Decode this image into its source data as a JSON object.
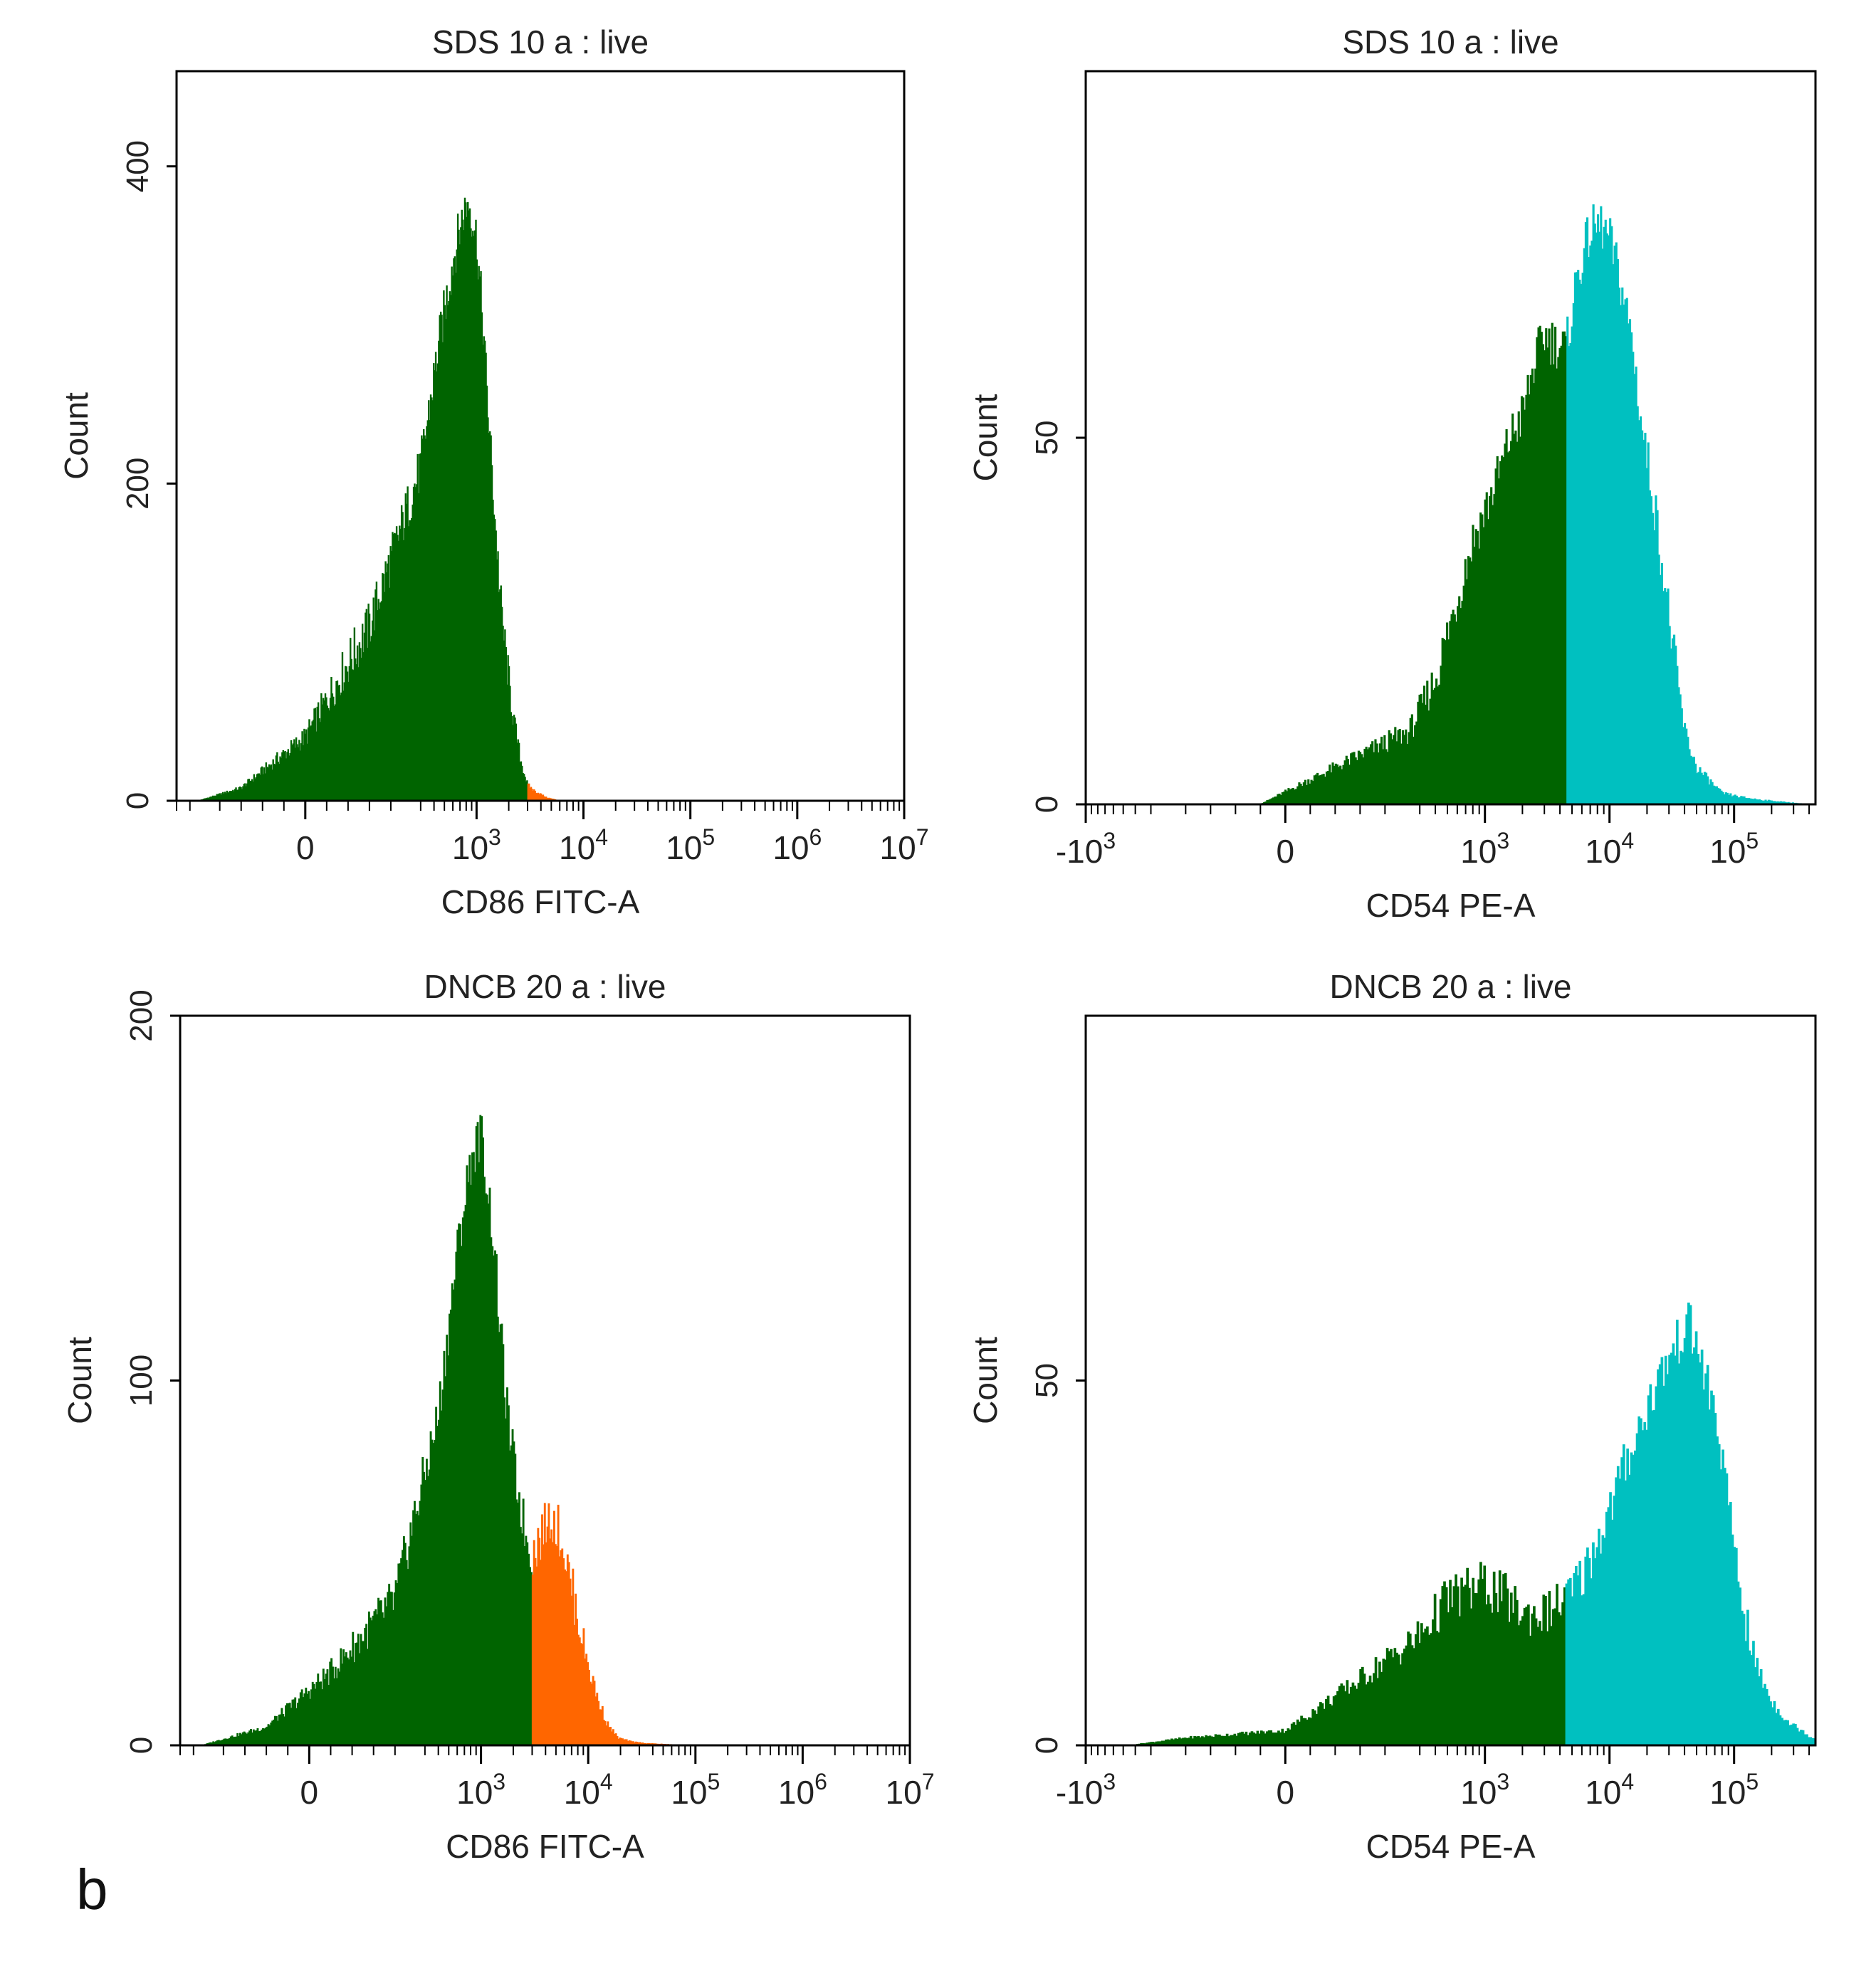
{
  "figure_label": "b",
  "colors": {
    "background": "#ffffff",
    "frame": "#000000",
    "negative": "#006400",
    "cd86_positive": "#ff6600",
    "cd54_positive": "#00c0c0"
  },
  "chart_data": [
    {
      "type": "histogram",
      "title": "SDS 10 a : live",
      "xlabel": "CD86 FITC-A",
      "ylabel": "Count",
      "x_scale": "biexponential",
      "xlim": [
        -400,
        10000000
      ],
      "x_ticks": [
        {
          "value": 0,
          "base": "0",
          "exp": ""
        },
        {
          "value": 1000,
          "base": "10",
          "exp": "3"
        },
        {
          "value": 10000,
          "base": "10",
          "exp": "4"
        },
        {
          "value": 100000,
          "base": "10",
          "exp": "5"
        },
        {
          "value": 1000000,
          "base": "10",
          "exp": "6"
        },
        {
          "value": 10000000,
          "base": "10",
          "exp": "7"
        }
      ],
      "ylim": [
        0,
        460
      ],
      "y_ticks": [
        0,
        200,
        400
      ],
      "gate": 3000,
      "series": [
        {
          "name": "negative",
          "points": [
            [
              -250,
              0
            ],
            [
              -150,
              8
            ],
            [
              0,
              40
            ],
            [
              150,
              110
            ],
            [
              300,
              210
            ],
            [
              450,
              290
            ],
            [
              600,
              340
            ],
            [
              750,
              370
            ],
            [
              850,
              378
            ],
            [
              1000,
              355
            ],
            [
              1150,
              300
            ],
            [
              1300,
              240
            ],
            [
              1500,
              175
            ],
            [
              1700,
              120
            ],
            [
              2000,
              75
            ],
            [
              2300,
              45
            ],
            [
              2600,
              25
            ],
            [
              3000,
              10
            ]
          ]
        },
        {
          "name": "positive",
          "points": [
            [
              3000,
              10
            ],
            [
              3500,
              6
            ],
            [
              4000,
              4
            ],
            [
              4500,
              2
            ],
            [
              5200,
              1
            ],
            [
              6000,
              0
            ]
          ]
        }
      ]
    },
    {
      "type": "histogram",
      "title": "SDS 10 a : live",
      "xlabel": "CD54 PE-A",
      "ylabel": "Count",
      "x_scale": "biexponential",
      "xlim": [
        -1000,
        450000
      ],
      "x_ticks": [
        {
          "value": -1000,
          "base": "-10",
          "exp": "3"
        },
        {
          "value": 0,
          "base": "0",
          "exp": ""
        },
        {
          "value": 1000,
          "base": "10",
          "exp": "3"
        },
        {
          "value": 10000,
          "base": "10",
          "exp": "4"
        },
        {
          "value": 100000,
          "base": "10",
          "exp": "5"
        }
      ],
      "ylim": [
        0,
        100
      ],
      "y_ticks": [
        0,
        50
      ],
      "gate": 4500,
      "series": [
        {
          "name": "negative",
          "points": [
            [
              -50,
              0
            ],
            [
              100,
              5
            ],
            [
              250,
              10
            ],
            [
              400,
              17
            ],
            [
              600,
              28
            ],
            [
              800,
              36
            ],
            [
              1000,
              40
            ],
            [
              1300,
              45
            ],
            [
              1600,
              50
            ],
            [
              2000,
              53
            ],
            [
              2500,
              60
            ],
            [
              3000,
              64
            ],
            [
              3600,
              63
            ],
            [
              4500,
              62
            ]
          ]
        },
        {
          "name": "positive",
          "points": [
            [
              4500,
              62
            ],
            [
              5500,
              72
            ],
            [
              7000,
              78
            ],
            [
              8500,
              79
            ],
            [
              10000,
              77
            ],
            [
              12000,
              72
            ],
            [
              15000,
              64
            ],
            [
              18000,
              52
            ],
            [
              22000,
              43
            ],
            [
              27000,
              32
            ],
            [
              33000,
              20
            ],
            [
              40000,
              10
            ],
            [
              50000,
              5
            ],
            [
              65000,
              3
            ],
            [
              80000,
              1.5
            ],
            [
              110000,
              1
            ],
            [
              160000,
              0.6
            ],
            [
              250000,
              0.3
            ],
            [
              400000,
              0
            ]
          ]
        }
      ]
    },
    {
      "type": "histogram",
      "title": "DNCB 20 a : live",
      "xlabel": "CD86 FITC-A",
      "ylabel": "Count",
      "x_scale": "biexponential",
      "xlim": [
        -400,
        10000000
      ],
      "x_ticks": [
        {
          "value": 0,
          "base": "0",
          "exp": ""
        },
        {
          "value": 1000,
          "base": "10",
          "exp": "3"
        },
        {
          "value": 10000,
          "base": "10",
          "exp": "4"
        },
        {
          "value": 100000,
          "base": "10",
          "exp": "5"
        },
        {
          "value": 1000000,
          "base": "10",
          "exp": "6"
        },
        {
          "value": 10000000,
          "base": "10",
          "exp": "7"
        }
      ],
      "ylim": [
        0,
        200
      ],
      "y_ticks": [
        0,
        100,
        200
      ],
      "gate": 3000,
      "series": [
        {
          "name": "negative",
          "points": [
            [
              -250,
              0
            ],
            [
              -100,
              5
            ],
            [
              50,
              20
            ],
            [
              200,
              40
            ],
            [
              400,
              90
            ],
            [
              600,
              135
            ],
            [
              800,
              160
            ],
            [
              1000,
              168
            ],
            [
              1100,
              158
            ],
            [
              1300,
              140
            ],
            [
              1500,
              115
            ],
            [
              1800,
              88
            ],
            [
              2200,
              70
            ],
            [
              2600,
              58
            ],
            [
              3000,
              52
            ]
          ]
        },
        {
          "name": "positive",
          "points": [
            [
              3000,
              52
            ],
            [
              3700,
              58
            ],
            [
              4500,
              63
            ],
            [
              5500,
              58
            ],
            [
              6500,
              48
            ],
            [
              8000,
              35
            ],
            [
              10000,
              22
            ],
            [
              12500,
              12
            ],
            [
              15000,
              6
            ],
            [
              19000,
              2
            ],
            [
              25000,
              1
            ],
            [
              35000,
              0.5
            ],
            [
              50000,
              0.3
            ],
            [
              80000,
              0
            ]
          ]
        }
      ]
    },
    {
      "type": "histogram",
      "title": "DNCB 20 a : live",
      "xlabel": "CD54 PE-A",
      "ylabel": "Count",
      "x_scale": "biexponential",
      "xlim": [
        -1000,
        450000
      ],
      "x_ticks": [
        {
          "value": -1000,
          "base": "-10",
          "exp": "3"
        },
        {
          "value": 0,
          "base": "0",
          "exp": ""
        },
        {
          "value": 1000,
          "base": "10",
          "exp": "3"
        },
        {
          "value": 10000,
          "base": "10",
          "exp": "4"
        },
        {
          "value": 100000,
          "base": "10",
          "exp": "5"
        }
      ],
      "ylim": [
        0,
        100
      ],
      "y_ticks": [
        0,
        50
      ],
      "gate": 4500,
      "series": [
        {
          "name": "negative",
          "points": [
            [
              -450,
              0
            ],
            [
              -200,
              1
            ],
            [
              0,
              2
            ],
            [
              150,
              9
            ],
            [
              300,
              15
            ],
            [
              500,
              20
            ],
            [
              700,
              21
            ],
            [
              1000,
              22
            ],
            [
              1500,
              20
            ],
            [
              2000,
              18
            ],
            [
              2500,
              18
            ],
            [
              3000,
              18
            ],
            [
              3700,
              19
            ],
            [
              4500,
              20
            ]
          ]
        },
        {
          "name": "positive",
          "points": [
            [
              4500,
              20
            ],
            [
              6000,
              23
            ],
            [
              8000,
              28
            ],
            [
              10000,
              32
            ],
            [
              13000,
              38
            ],
            [
              17000,
              43
            ],
            [
              22000,
              48
            ],
            [
              28000,
              52
            ],
            [
              35000,
              55
            ],
            [
              42000,
              58
            ],
            [
              50000,
              55
            ],
            [
              60000,
              50
            ],
            [
              70000,
              45
            ],
            [
              80000,
              40
            ],
            [
              90000,
              32
            ],
            [
              100000,
              28
            ],
            [
              120000,
              18
            ],
            [
              150000,
              11
            ],
            [
              200000,
              6
            ],
            [
              280000,
              3
            ],
            [
              350000,
              2
            ],
            [
              420000,
              1
            ],
            [
              450000,
              1
            ]
          ]
        }
      ]
    }
  ]
}
